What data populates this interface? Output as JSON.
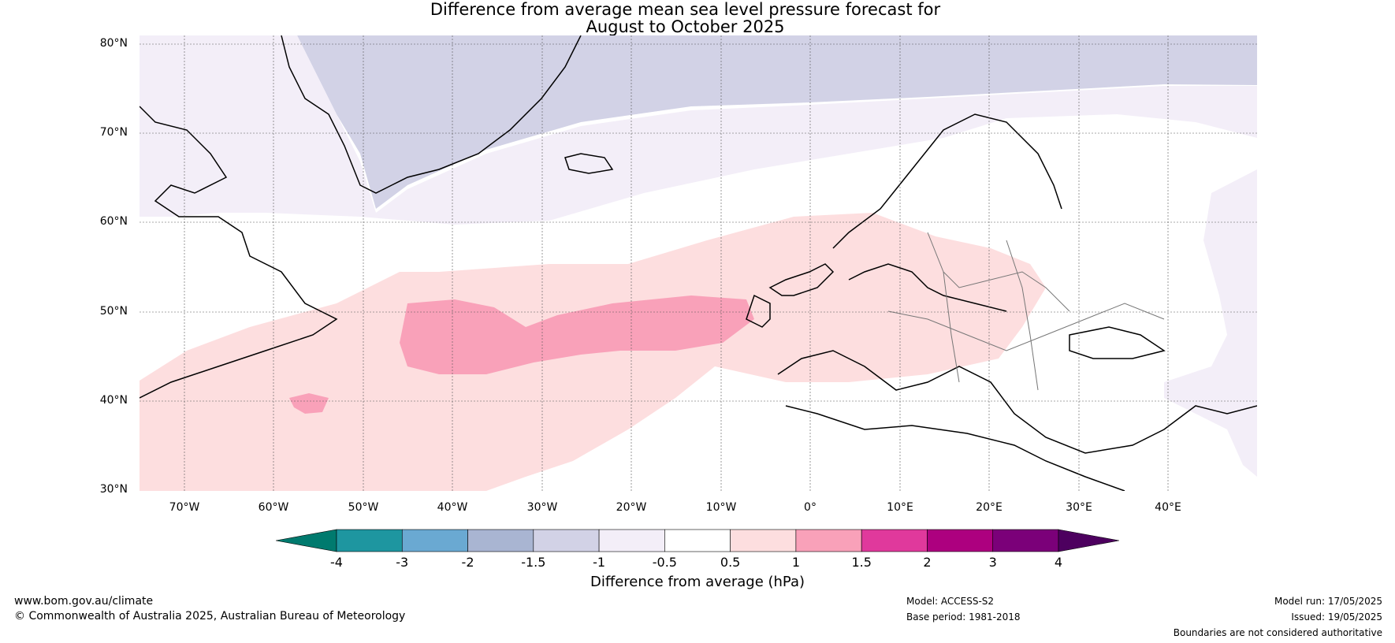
{
  "title_line1": "Difference from average mean sea level pressure forecast for",
  "title_line2": "August to October 2025",
  "lat_labels": [
    "80°N",
    "70°N",
    "60°N",
    "50°N",
    "40°N",
    "30°N"
  ],
  "lon_labels": [
    "70°W",
    "60°W",
    "50°W",
    "40°W",
    "30°W",
    "20°W",
    "10°W",
    "0°",
    "10°E",
    "20°E",
    "30°E",
    "40°E"
  ],
  "colorbar": {
    "ticks": [
      "-4",
      "-3",
      "-2",
      "-1.5",
      "-1",
      "-0.5",
      "0.5",
      "1",
      "1.5",
      "2",
      "3",
      "4"
    ],
    "colors": [
      "#007a6e",
      "#1e96a0",
      "#6aa9d2",
      "#a9b5d2",
      "#d2d2e6",
      "#f3eef8",
      "#ffffff",
      "#fddedf",
      "#f9a1b9",
      "#e0399c",
      "#ad007f",
      "#7b0079",
      "#4d005f"
    ],
    "label": "Difference from average (hPa)"
  },
  "footer": {
    "website": "www.bom.gov.au/climate",
    "copyright": "© Commonwealth of Australia 2025, Australian Bureau of Meteorology",
    "model": "Model: ACCESS-S2",
    "base_period": "Base period: 1981-2018",
    "model_run": "Model run: 17/05/2025",
    "issued": "Issued: 19/05/2025",
    "disclaimer": "Boundaries are not considered authoritative"
  }
}
